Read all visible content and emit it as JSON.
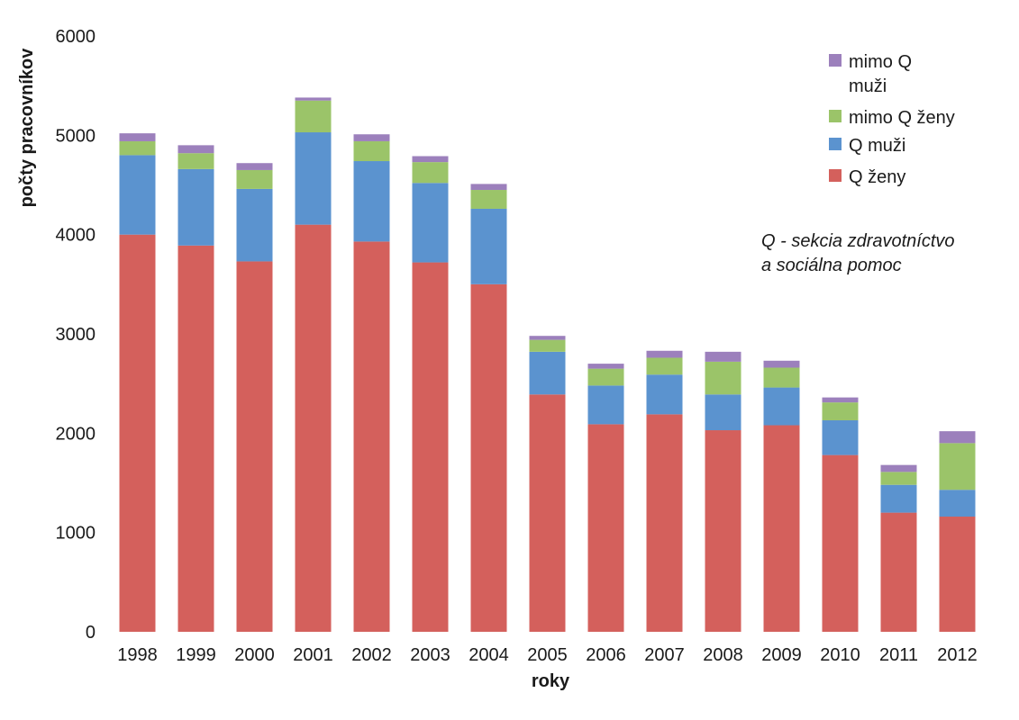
{
  "chart_data": {
    "type": "bar",
    "stacked": true,
    "title": "",
    "xlabel": "roky",
    "ylabel": "počty pracovníkov",
    "ylim": [
      0,
      6000
    ],
    "yticks": [
      0,
      1000,
      2000,
      3000,
      4000,
      5000,
      6000
    ],
    "grid": false,
    "legend_position": "top-right",
    "categories": [
      "1998",
      "1999",
      "2000",
      "2001",
      "2002",
      "2003",
      "2004",
      "2005",
      "2006",
      "2007",
      "2008",
      "2009",
      "2010",
      "2011",
      "2012"
    ],
    "series": [
      {
        "name": "Q ženy",
        "color": "#d4605c",
        "values": [
          4000,
          3890,
          3730,
          4100,
          3930,
          3720,
          3500,
          2390,
          2090,
          2190,
          2030,
          2080,
          1780,
          1200,
          1160
        ]
      },
      {
        "name": "Q muži",
        "color": "#5b93cf",
        "values": [
          800,
          770,
          730,
          930,
          810,
          800,
          760,
          430,
          390,
          400,
          360,
          380,
          350,
          280,
          270
        ]
      },
      {
        "name": "mimo Q ženy",
        "color": "#9bc469",
        "values": [
          140,
          160,
          190,
          320,
          200,
          210,
          190,
          120,
          170,
          170,
          330,
          200,
          180,
          130,
          470
        ]
      },
      {
        "name": "mimo Q muži",
        "color": "#9c80bc",
        "values": [
          80,
          80,
          70,
          30,
          70,
          60,
          60,
          40,
          50,
          70,
          100,
          70,
          50,
          70,
          120
        ]
      }
    ],
    "legend_order": [
      "mimo Q muži",
      "mimo Q ženy",
      "Q muži",
      "Q ženy"
    ],
    "annotation": [
      "Q - sekcia zdravotníctvo",
      "a sociálna pomoc"
    ]
  }
}
